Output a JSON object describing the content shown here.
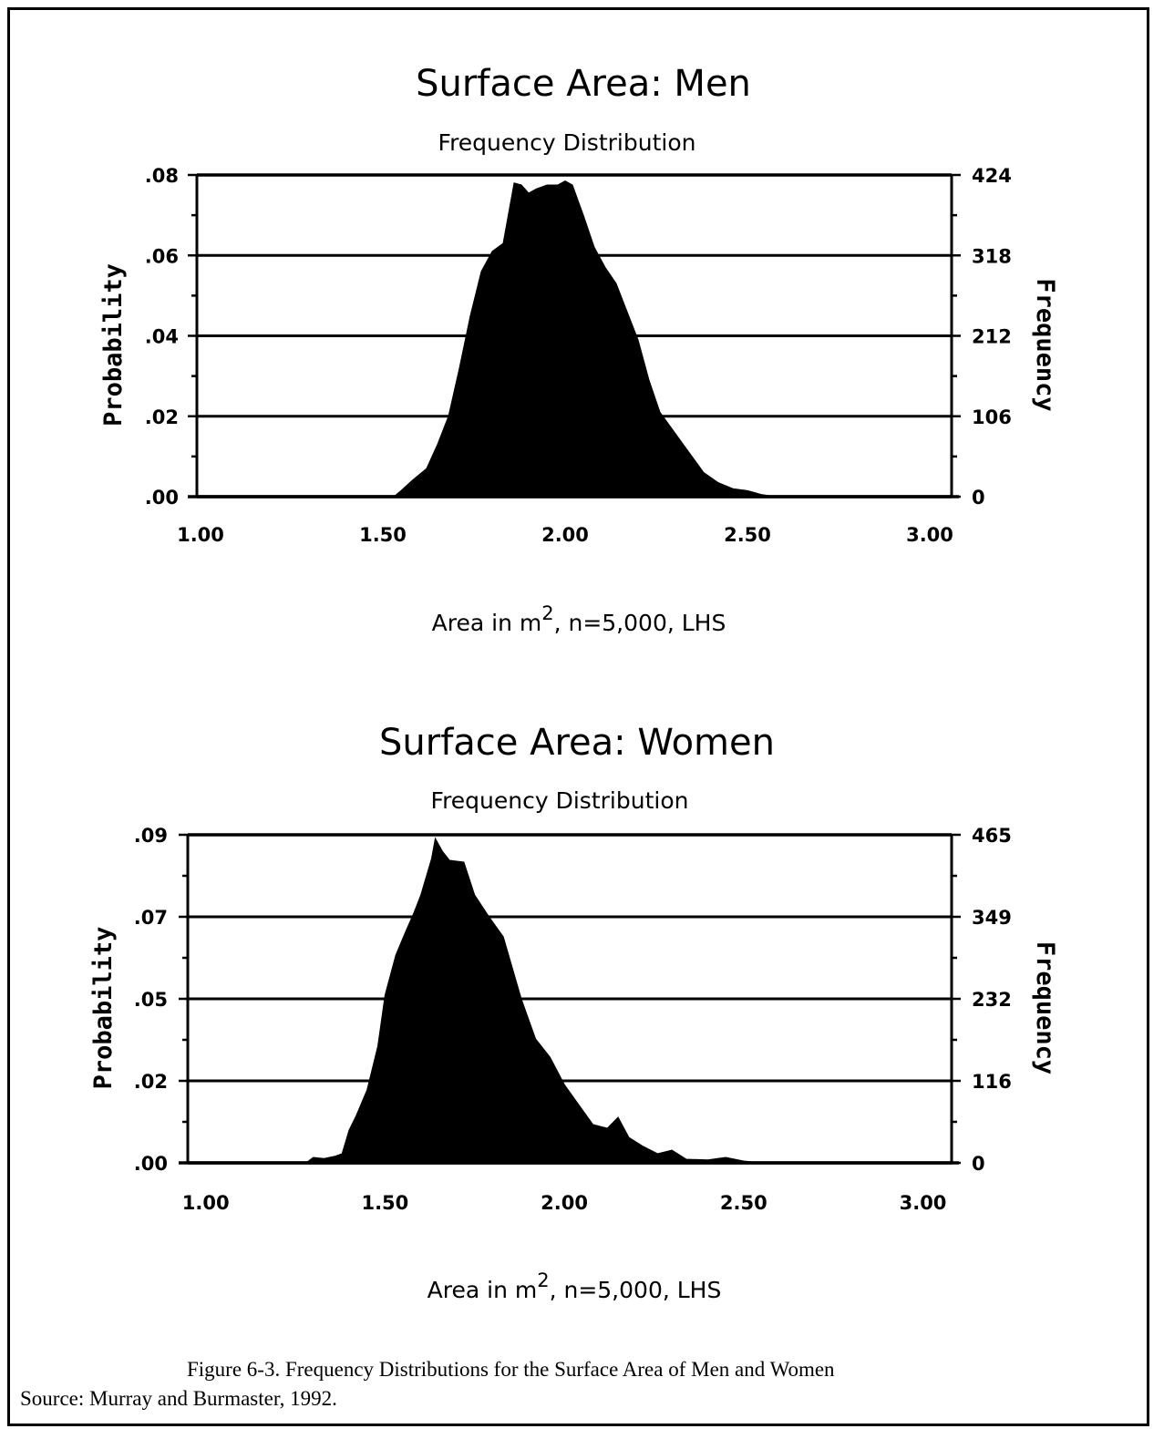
{
  "chart_data": [
    {
      "type": "area",
      "title": "Surface Area: Men",
      "subtitle": "Frequency Distribution",
      "xlabel": "Area in m^2, n=5,000, LHS",
      "xlabel_parts": {
        "pre": "Area in m",
        "sup": "2",
        "post": ", n=5,000, LHS"
      },
      "ylabel_left": "Probability",
      "ylabel_right": "Frequency",
      "xlim": [
        0.99,
        3.06
      ],
      "ylim": [
        0,
        0.08
      ],
      "x_ticks": [
        "1.00",
        "1.50",
        "2.00",
        "2.50",
        "3.00"
      ],
      "x_tick_values": [
        1.0,
        1.5,
        2.0,
        2.5,
        3.0
      ],
      "y_ticks_left": [
        ".00",
        ".02",
        ".04",
        ".06",
        ".08"
      ],
      "y_ticks_right": [
        "0",
        "106",
        "212",
        "318",
        "424"
      ],
      "y_tick_values": [
        0,
        0.02,
        0.04,
        0.06,
        0.08
      ],
      "grid": true,
      "color": "#000000",
      "x": [
        1.53,
        1.55,
        1.58,
        1.62,
        1.65,
        1.68,
        1.71,
        1.74,
        1.77,
        1.8,
        1.83,
        1.86,
        1.88,
        1.9,
        1.92,
        1.95,
        1.98,
        2.0,
        2.02,
        2.05,
        2.08,
        2.11,
        2.14,
        2.17,
        2.2,
        2.23,
        2.26,
        2.3,
        2.34,
        2.38,
        2.42,
        2.46,
        2.5,
        2.54,
        2.58
      ],
      "y": [
        0,
        0.0015,
        0.004,
        0.007,
        0.013,
        0.02,
        0.032,
        0.045,
        0.056,
        0.061,
        0.063,
        0.078,
        0.0775,
        0.0755,
        0.0765,
        0.0775,
        0.0775,
        0.0785,
        0.0775,
        0.07,
        0.062,
        0.057,
        0.053,
        0.046,
        0.039,
        0.029,
        0.021,
        0.016,
        0.011,
        0.006,
        0.0035,
        0.002,
        0.0015,
        0.0005,
        0
      ]
    },
    {
      "type": "area",
      "title": "Surface Area: Women",
      "subtitle": "Frequency Distribution",
      "xlabel": "Area in m^2, n=5,000, LHS",
      "xlabel_parts": {
        "pre": "Area in m",
        "sup": "2",
        "post": ", n=5,000, LHS"
      },
      "ylabel_left": "Probability",
      "ylabel_right": "Frequency",
      "xlim": [
        0.95,
        3.08
      ],
      "ylim": [
        0,
        0.09
      ],
      "x_ticks": [
        "1.00",
        "1.50",
        "2.00",
        "2.50",
        "3.00"
      ],
      "x_tick_values": [
        1.0,
        1.5,
        2.0,
        2.5,
        3.0
      ],
      "y_ticks_left": [
        ".00",
        ".02",
        ".05",
        ".07",
        ".09"
      ],
      "y_ticks_right": [
        "0",
        "116",
        "232",
        "349",
        "465"
      ],
      "y_tick_values": [
        0,
        0.0225,
        0.045,
        0.0675,
        0.09
      ],
      "grid": true,
      "color": "#000000",
      "x": [
        1.28,
        1.3,
        1.33,
        1.36,
        1.38,
        1.4,
        1.42,
        1.45,
        1.48,
        1.5,
        1.53,
        1.56,
        1.58,
        1.6,
        1.63,
        1.64,
        1.66,
        1.68,
        1.72,
        1.75,
        1.79,
        1.83,
        1.88,
        1.92,
        1.96,
        2.0,
        2.04,
        2.08,
        2.12,
        2.15,
        2.18,
        2.22,
        2.26,
        2.3,
        2.34,
        2.4,
        2.45,
        2.5,
        2.55
      ],
      "y": [
        0,
        0.0015,
        0.0012,
        0.0018,
        0.0025,
        0.009,
        0.013,
        0.02,
        0.032,
        0.046,
        0.057,
        0.064,
        0.0685,
        0.0735,
        0.0835,
        0.089,
        0.0855,
        0.083,
        0.0825,
        0.0735,
        0.0675,
        0.062,
        0.045,
        0.034,
        0.029,
        0.0215,
        0.016,
        0.0105,
        0.0095,
        0.0125,
        0.007,
        0.0045,
        0.0025,
        0.0035,
        0.001,
        0.0008,
        0.0015,
        0.0005,
        0
      ]
    }
  ],
  "caption": "Figure 6-3.  Frequency Distributions for the Surface Area of Men and Women",
  "source": "Source: Murray and Burmaster, 1992."
}
